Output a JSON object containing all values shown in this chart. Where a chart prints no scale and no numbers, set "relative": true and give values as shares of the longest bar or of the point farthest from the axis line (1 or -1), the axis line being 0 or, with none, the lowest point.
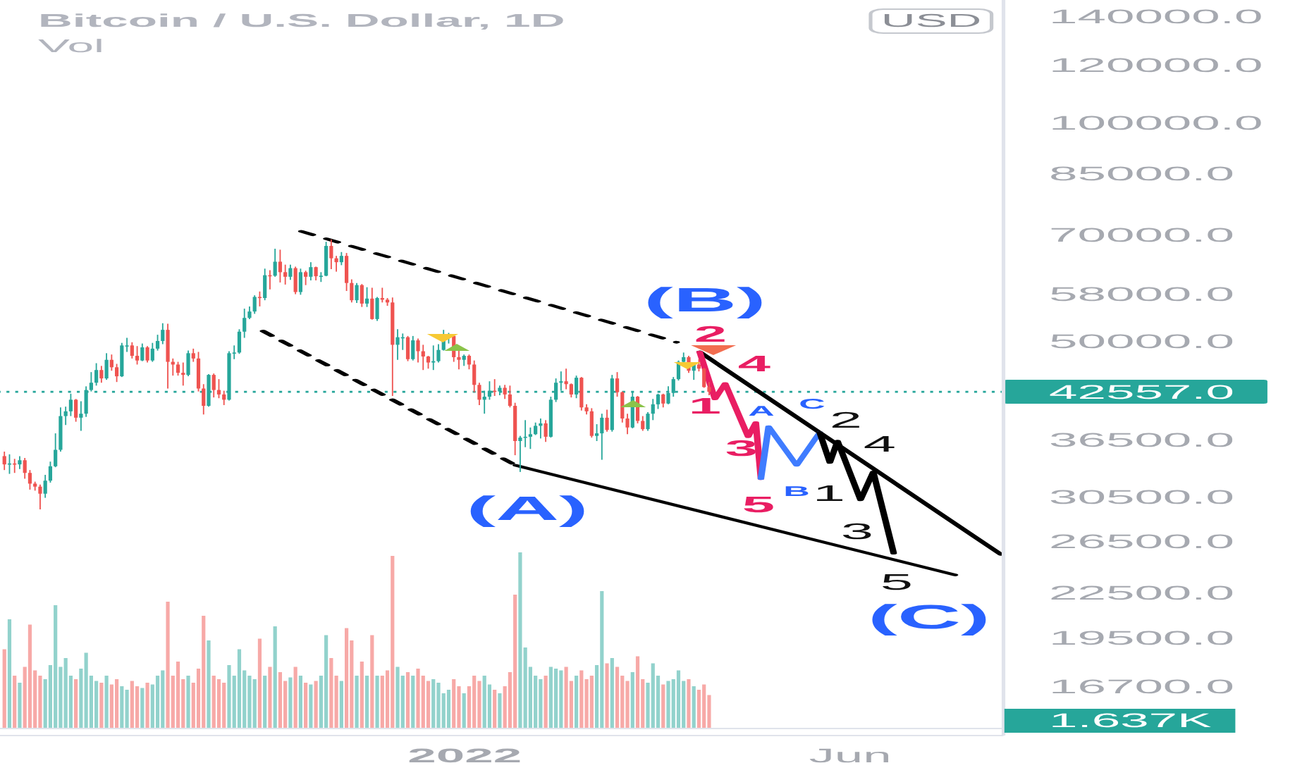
{
  "chart_data": [
    {
      "type": "candlestick",
      "title": "Bitcoin / U.S. Dollar, 1D",
      "x": [
        "2021-07-05",
        "2021-07-07",
        "2021-07-09",
        "2021-07-11",
        "2021-07-13",
        "2021-07-15",
        "2021-07-17",
        "2021-07-19",
        "2021-07-21",
        "2021-07-23",
        "2021-07-25",
        "2021-07-27",
        "2021-07-29",
        "2021-07-31",
        "2021-08-02",
        "2021-08-04",
        "2021-08-06",
        "2021-08-08",
        "2021-08-10",
        "2021-08-12",
        "2021-08-14",
        "2021-08-16",
        "2021-08-18",
        "2021-08-20",
        "2021-08-22",
        "2021-08-24",
        "2021-08-26",
        "2021-08-28",
        "2021-08-30",
        "2021-09-01",
        "2021-09-03",
        "2021-09-05",
        "2021-09-07",
        "2021-09-09",
        "2021-09-11",
        "2021-09-13",
        "2021-09-15",
        "2021-09-17",
        "2021-09-19",
        "2021-09-21",
        "2021-09-23",
        "2021-09-25",
        "2021-09-27",
        "2021-09-29",
        "2021-10-01",
        "2021-10-03",
        "2021-10-05",
        "2021-10-07",
        "2021-10-09",
        "2021-10-11",
        "2021-10-13",
        "2021-10-15",
        "2021-10-17",
        "2021-10-19",
        "2021-10-21",
        "2021-10-23",
        "2021-10-25",
        "2021-10-27",
        "2021-10-29",
        "2021-10-31",
        "2021-11-02",
        "2021-11-04",
        "2021-11-06",
        "2021-11-08",
        "2021-11-10",
        "2021-11-12",
        "2021-11-14",
        "2021-11-16",
        "2021-11-18",
        "2021-11-20",
        "2021-11-22",
        "2021-11-24",
        "2021-11-26",
        "2021-11-28",
        "2021-11-30",
        "2021-12-02",
        "2021-12-04",
        "2021-12-06",
        "2021-12-08",
        "2021-12-10",
        "2021-12-12",
        "2021-12-14",
        "2021-12-16",
        "2021-12-18",
        "2021-12-20",
        "2021-12-22",
        "2021-12-24",
        "2021-12-26",
        "2021-12-28",
        "2021-12-30",
        "2022-01-01",
        "2022-01-03",
        "2022-01-05",
        "2022-01-07",
        "2022-01-09",
        "2022-01-11",
        "2022-01-13",
        "2022-01-15",
        "2022-01-17",
        "2022-01-19",
        "2022-01-21",
        "2022-01-23",
        "2022-01-25",
        "2022-01-27",
        "2022-01-29",
        "2022-01-31",
        "2022-02-02",
        "2022-02-04",
        "2022-02-06",
        "2022-02-08",
        "2022-02-10",
        "2022-02-12",
        "2022-02-14",
        "2022-02-16",
        "2022-02-18",
        "2022-02-20",
        "2022-02-22",
        "2022-02-24",
        "2022-02-26",
        "2022-02-28",
        "2022-03-02",
        "2022-03-04",
        "2022-03-06",
        "2022-03-08",
        "2022-03-10",
        "2022-03-12",
        "2022-03-14",
        "2022-03-16",
        "2022-03-18",
        "2022-03-20",
        "2022-03-22",
        "2022-03-24",
        "2022-03-26",
        "2022-03-28",
        "2022-03-30",
        "2022-04-01",
        "2022-04-03",
        "2022-04-05",
        "2022-04-07"
      ],
      "ohlc": [
        [
          34700,
          35200,
          33200,
          33800
        ],
        [
          33800,
          34900,
          32800,
          33900
        ],
        [
          33900,
          34400,
          32900,
          33800
        ],
        [
          33800,
          34700,
          33300,
          34250
        ],
        [
          34250,
          34500,
          32300,
          32900
        ],
        [
          32900,
          33200,
          31200,
          31800
        ],
        [
          31800,
          32000,
          31100,
          31500
        ],
        [
          31500,
          31700,
          29300,
          30800
        ],
        [
          30800,
          32700,
          30400,
          32100
        ],
        [
          32100,
          34100,
          31900,
          33600
        ],
        [
          33600,
          37300,
          33500,
          35400
        ],
        [
          35400,
          40500,
          35200,
          39400
        ],
        [
          39400,
          40600,
          38300,
          40000
        ],
        [
          40000,
          42300,
          39400,
          41500
        ],
        [
          41500,
          41600,
          38700,
          39200
        ],
        [
          39200,
          41300,
          37600,
          39700
        ],
        [
          39700,
          43300,
          39300,
          42800
        ],
        [
          42800,
          45300,
          42600,
          43800
        ],
        [
          43800,
          46600,
          43400,
          45600
        ],
        [
          45600,
          46200,
          43800,
          44400
        ],
        [
          44400,
          48100,
          44200,
          47100
        ],
        [
          47100,
          47900,
          45500,
          46000
        ],
        [
          46000,
          46500,
          43900,
          44700
        ],
        [
          44700,
          49700,
          44600,
          49300
        ],
        [
          49300,
          50500,
          48300,
          49300
        ],
        [
          49300,
          49800,
          47300,
          47700
        ],
        [
          47700,
          49200,
          46400,
          47000
        ],
        [
          47000,
          49600,
          46900,
          49000
        ],
        [
          49000,
          49200,
          46700,
          47000
        ],
        [
          47000,
          49700,
          46800,
          48800
        ],
        [
          48800,
          51000,
          48500,
          50000
        ],
        [
          50000,
          52900,
          49500,
          51800
        ],
        [
          51800,
          52800,
          43000,
          46800
        ],
        [
          46800,
          47300,
          44800,
          46400
        ],
        [
          46400,
          46800,
          44800,
          45200
        ],
        [
          45200,
          46700,
          43400,
          44900
        ],
        [
          44900,
          48500,
          44700,
          48100
        ],
        [
          48100,
          48800,
          46800,
          47300
        ],
        [
          47300,
          48300,
          42600,
          43000
        ],
        [
          43000,
          43600,
          39600,
          40700
        ],
        [
          40700,
          45000,
          40600,
          44900
        ],
        [
          44900,
          45100,
          41800,
          42800
        ],
        [
          42800,
          44300,
          41700,
          42200
        ],
        [
          42200,
          42700,
          40800,
          41500
        ],
        [
          41500,
          48400,
          41400,
          48100
        ],
        [
          48100,
          49300,
          47200,
          48200
        ],
        [
          48200,
          51900,
          48000,
          51500
        ],
        [
          51500,
          55400,
          50500,
          53800
        ],
        [
          53800,
          55800,
          53600,
          54900
        ],
        [
          54900,
          57800,
          54500,
          57500
        ],
        [
          57500,
          58500,
          55800,
          57300
        ],
        [
          57300,
          62900,
          56900,
          61600
        ],
        [
          61600,
          62600,
          58900,
          61500
        ],
        [
          61500,
          67000,
          61300,
          64300
        ],
        [
          64300,
          66800,
          60200,
          62200
        ],
        [
          62200,
          63700,
          59800,
          61300
        ],
        [
          61300,
          63700,
          60700,
          63000
        ],
        [
          63000,
          63300,
          58000,
          58400
        ],
        [
          58400,
          62900,
          57900,
          62200
        ],
        [
          62200,
          62500,
          59700,
          61300
        ],
        [
          61300,
          64200,
          60600,
          63200
        ],
        [
          63200,
          63300,
          60600,
          61400
        ],
        [
          61400,
          62200,
          60300,
          61500
        ],
        [
          61500,
          68500,
          61400,
          67600
        ],
        [
          67600,
          69000,
          62800,
          65000
        ],
        [
          65000,
          65500,
          62300,
          64200
        ],
        [
          64200,
          66300,
          63600,
          65500
        ],
        [
          65500,
          66100,
          58600,
          60100
        ],
        [
          60100,
          60800,
          56500,
          56900
        ],
        [
          56900,
          60100,
          56400,
          59700
        ],
        [
          59700,
          59900,
          55700,
          56300
        ],
        [
          56300,
          59300,
          55700,
          57200
        ],
        [
          57200,
          59200,
          53500,
          53600
        ],
        [
          53600,
          57500,
          53300,
          57300
        ],
        [
          57300,
          59200,
          56500,
          57000
        ],
        [
          57000,
          57300,
          55900,
          56500
        ],
        [
          56500,
          57400,
          42000,
          49400
        ],
        [
          49400,
          51900,
          47100,
          50600
        ],
        [
          50600,
          51200,
          48600,
          50600
        ],
        [
          50600,
          50800,
          46900,
          47200
        ],
        [
          47200,
          50800,
          47000,
          50100
        ],
        [
          50100,
          50400,
          46700,
          48400
        ],
        [
          48400,
          49400,
          45600,
          47600
        ],
        [
          47600,
          47700,
          45800,
          46700
        ],
        [
          46700,
          49300,
          45600,
          46900
        ],
        [
          46900,
          49500,
          46700,
          48600
        ],
        [
          48600,
          51800,
          48500,
          50800
        ],
        [
          50800,
          51300,
          49600,
          50800
        ],
        [
          50800,
          51000,
          46800,
          47500
        ],
        [
          47500,
          48500,
          45700,
          47100
        ],
        [
          47100,
          47900,
          46200,
          47700
        ],
        [
          47700,
          47900,
          45700,
          46400
        ],
        [
          46400,
          47000,
          42500,
          43500
        ],
        [
          43500,
          43800,
          40800,
          41500
        ],
        [
          41500,
          42700,
          39700,
          41900
        ],
        [
          41900,
          44000,
          41500,
          42700
        ],
        [
          42700,
          44300,
          42000,
          42600
        ],
        [
          42600,
          43400,
          42100,
          43100
        ],
        [
          43100,
          43500,
          41600,
          42200
        ],
        [
          42200,
          43400,
          40500,
          40700
        ],
        [
          40700,
          41100,
          34800,
          36400
        ],
        [
          36400,
          37000,
          33000,
          36800
        ],
        [
          36800,
          38900,
          35700,
          36900
        ],
        [
          36900,
          38000,
          35500,
          37200
        ],
        [
          37200,
          38600,
          37100,
          38200
        ],
        [
          38200,
          39100,
          36700,
          38500
        ],
        [
          38500,
          38900,
          36300,
          36900
        ],
        [
          36900,
          41900,
          36800,
          41500
        ],
        [
          41500,
          44400,
          41200,
          43800
        ],
        [
          43800,
          45400,
          42700,
          44000
        ],
        [
          44000,
          45800,
          42900,
          43600
        ],
        [
          43600,
          43700,
          41800,
          42200
        ],
        [
          42200,
          44800,
          41700,
          44500
        ],
        [
          44500,
          44600,
          40100,
          40500
        ],
        [
          40500,
          40900,
          39600,
          40000
        ],
        [
          40000,
          40400,
          36800,
          37000
        ],
        [
          37000,
          38400,
          36400,
          37300
        ],
        [
          37300,
          39700,
          34300,
          39200
        ],
        [
          39200,
          40200,
          37500,
          37700
        ],
        [
          37700,
          44900,
          37500,
          44400
        ],
        [
          44400,
          45300,
          41900,
          42500
        ],
        [
          42500,
          42600,
          38600,
          39100
        ],
        [
          39100,
          39700,
          37200,
          38000
        ],
        [
          38000,
          42500,
          37900,
          41900
        ],
        [
          41900,
          42000,
          38500,
          38800
        ],
        [
          38800,
          39400,
          37600,
          37800
        ],
        [
          37800,
          39900,
          37600,
          39700
        ],
        [
          39700,
          41600,
          38900,
          40900
        ],
        [
          40900,
          42300,
          40300,
          42200
        ],
        [
          42200,
          42300,
          40500,
          41000
        ],
        [
          41000,
          43300,
          40900,
          42400
        ],
        [
          42400,
          44600,
          41900,
          44300
        ],
        [
          44300,
          47000,
          44100,
          46800
        ],
        [
          46800,
          48200,
          46600,
          47500
        ],
        [
          47500,
          47700,
          45200,
          45500
        ],
        [
          45500,
          46700,
          44200,
          46400
        ],
        [
          46400,
          47200,
          45400,
          45800
        ],
        [
          45800,
          45900,
          43100,
          43200
        ],
        [
          43200,
          43900,
          42100,
          42557
        ]
      ],
      "colors": [
        "#ef5350",
        "#26a69a",
        "#ef5350",
        "#26a69a",
        "#ef5350",
        "#ef5350",
        "#ef5350",
        "#ef5350",
        "#26a69a",
        "#26a69a",
        "#26a69a",
        "#26a69a",
        "#26a69a",
        "#26a69a",
        "#ef5350",
        "#26a69a",
        "#26a69a",
        "#26a69a",
        "#26a69a",
        "#ef5350",
        "#26a69a",
        "#ef5350",
        "#ef5350",
        "#26a69a",
        "#26a69a",
        "#ef5350",
        "#ef5350",
        "#26a69a",
        "#ef5350",
        "#26a69a",
        "#26a69a",
        "#26a69a",
        "#ef5350",
        "#ef5350",
        "#ef5350",
        "#ef5350",
        "#26a69a",
        "#ef5350",
        "#ef5350",
        "#ef5350",
        "#26a69a",
        "#ef5350",
        "#ef5350",
        "#ef5350",
        "#26a69a",
        "#26a69a",
        "#26a69a",
        "#26a69a",
        "#26a69a",
        "#26a69a",
        "#ef5350",
        "#26a69a",
        "#ef5350",
        "#26a69a",
        "#ef5350",
        "#ef5350",
        "#26a69a",
        "#ef5350",
        "#26a69a",
        "#ef5350",
        "#26a69a",
        "#ef5350",
        "#26a69a",
        "#26a69a",
        "#ef5350",
        "#ef5350",
        "#26a69a",
        "#ef5350",
        "#ef5350",
        "#26a69a",
        "#ef5350",
        "#26a69a",
        "#ef5350",
        "#26a69a",
        "#ef5350",
        "#ef5350",
        "#ef5350",
        "#26a69a",
        "#26a69a",
        "#ef5350",
        "#26a69a",
        "#ef5350",
        "#ef5350",
        "#ef5350",
        "#26a69a",
        "#26a69a",
        "#26a69a",
        "#26a69a",
        "#ef5350",
        "#ef5350",
        "#26a69a",
        "#ef5350",
        "#ef5350",
        "#ef5350",
        "#26a69a",
        "#26a69a",
        "#ef5350",
        "#26a69a",
        "#ef5350",
        "#ef5350",
        "#ef5350",
        "#26a69a",
        "#26a69a",
        "#26a69a",
        "#26a69a",
        "#26a69a",
        "#ef5350",
        "#26a69a",
        "#26a69a",
        "#26a69a",
        "#ef5350",
        "#ef5350",
        "#26a69a",
        "#ef5350",
        "#ef5350",
        "#ef5350",
        "#26a69a",
        "#26a69a",
        "#ef5350",
        "#26a69a",
        "#ef5350",
        "#ef5350",
        "#ef5350",
        "#26a69a",
        "#ef5350",
        "#ef5350",
        "#26a69a",
        "#26a69a",
        "#26a69a",
        "#ef5350",
        "#26a69a",
        "#26a69a",
        "#26a69a",
        "#26a69a",
        "#ef5350",
        "#26a69a",
        "#ef5350",
        "#ef5350",
        "#ef5350"
      ],
      "xlim": [
        "2021-07-03",
        "2022-07-31"
      ],
      "xticks": [
        {
          "value": "2022-01-01",
          "label": "2022"
        },
        {
          "value": "2022-06-01",
          "label": "Jun"
        }
      ],
      "ylim": [
        14300,
        147500
      ],
      "log": true,
      "yticks": [
        {
          "value": 140000,
          "label": "140000.0"
        },
        {
          "value": 120000,
          "label": "120000.0"
        },
        {
          "value": 100000,
          "label": "100000.0"
        },
        {
          "value": 85000,
          "label": "85000.0"
        },
        {
          "value": 70000,
          "label": "70000.0"
        },
        {
          "value": 58000,
          "label": "58000.0"
        },
        {
          "value": 50000,
          "label": "50000.0"
        },
        {
          "value": 36500,
          "label": "36500.0"
        },
        {
          "value": 30500,
          "label": "30500.0"
        },
        {
          "value": 26500,
          "label": "26500.0"
        },
        {
          "value": 22500,
          "label": "22500.0"
        },
        {
          "value": 19500,
          "label": "19500.0"
        },
        {
          "value": 16700,
          "label": "16700.0"
        }
      ],
      "ref_lines": [
        {
          "axis": "y",
          "value": 42557,
          "label": "42557.0",
          "color": "#26a69a",
          "line_style": "dotted"
        }
      ],
      "series": [
        {
          "type": "line",
          "x": [
            "2021-10-29",
            "2022-03-25"
          ],
          "values": [
            70800,
            49800
          ],
          "color": "#000000",
          "line_style": "dashed"
        },
        {
          "type": "line",
          "x": [
            "2021-10-14",
            "2022-01-21"
          ],
          "values": [
            51600,
            33700
          ],
          "color": "#000000",
          "line_style": "dashed"
        },
        {
          "type": "line",
          "x": [
            "2022-01-21",
            "2022-07-12"
          ],
          "values": [
            33700,
            23800
          ],
          "color": "#000000",
          "line_style": "solid"
        },
        {
          "type": "line",
          "x": [
            "2022-04-03",
            "2022-07-30"
          ],
          "values": [
            48300,
            25400
          ],
          "color": "#000000",
          "line_style": "solid"
        },
        {
          "type": "line",
          "x": [
            "2022-04-03",
            "2022-04-09",
            "2022-04-13",
            "2022-04-22",
            "2022-04-25",
            "2022-04-27"
          ],
          "values": [
            48300,
            41600,
            43700,
            36900,
            38600,
            32300
          ],
          "color": "#e91e63",
          "line_style": "solid"
        },
        {
          "type": "line",
          "x": [
            "2022-04-27",
            "2022-04-30",
            "2022-05-11",
            "2022-05-20"
          ],
          "values": [
            32300,
            38100,
            33700,
            37400
          ],
          "color": "#3f7cff",
          "line_style": "solid"
        },
        {
          "type": "line",
          "x": [
            "2022-05-20",
            "2022-05-24",
            "2022-05-27",
            "2022-06-05",
            "2022-06-10",
            "2022-06-18"
          ],
          "values": [
            37400,
            34000,
            36400,
            30200,
            33000,
            25500
          ],
          "color": "#000000",
          "line_style": "solid"
        }
      ],
      "annotations": [
        "USD",
        "(A)",
        "(B)",
        "(C)",
        "1",
        "2",
        "3",
        "4",
        "5",
        "A",
        "B",
        "C",
        "1",
        "2",
        "3",
        "4",
        "5"
      ]
    },
    {
      "type": "bar",
      "title": "Vol",
      "relative": true,
      "tick_labels": false,
      "categories": [
        null,
        null,
        null,
        null,
        null,
        null,
        null,
        null,
        null,
        null,
        null,
        null,
        null,
        null,
        null,
        null,
        null,
        null,
        null,
        null,
        null,
        null,
        null,
        null,
        null,
        null,
        null,
        null,
        null,
        null,
        null,
        null,
        null,
        null,
        null,
        null,
        null,
        null,
        null,
        null,
        null,
        null,
        null,
        null,
        null,
        null,
        null,
        null,
        null,
        null,
        null,
        null,
        null,
        null,
        null,
        null,
        null,
        null,
        null,
        null,
        null,
        null,
        null,
        null,
        null,
        null,
        null,
        null,
        null,
        null,
        null,
        null,
        null,
        null,
        null,
        null,
        null,
        null,
        null,
        null,
        null,
        null,
        null,
        null,
        null,
        null,
        null,
        null,
        null,
        null,
        null,
        null,
        null,
        null,
        null,
        null,
        null,
        null,
        null,
        null,
        null,
        null,
        null,
        null,
        null,
        null,
        null,
        null,
        null,
        null,
        null,
        null,
        null,
        null,
        null,
        null,
        null,
        null,
        null,
        null,
        null,
        null,
        null,
        null,
        null,
        null,
        null,
        null,
        null,
        null,
        null,
        null,
        null,
        null,
        null,
        null,
        null,
        null,
        null
      ],
      "values": [
        0.45,
        0.62,
        0.3,
        0.26,
        0.35,
        0.59,
        0.33,
        0.3,
        0.28,
        0.36,
        0.7,
        0.35,
        0.4,
        0.3,
        0.28,
        0.34,
        0.43,
        0.3,
        0.27,
        0.26,
        0.3,
        0.25,
        0.28,
        0.24,
        0.22,
        0.27,
        0.24,
        0.23,
        0.26,
        0.25,
        0.3,
        0.33,
        0.72,
        0.3,
        0.38,
        0.28,
        0.3,
        0.26,
        0.34,
        0.64,
        0.5,
        0.3,
        0.28,
        0.26,
        0.36,
        0.3,
        0.45,
        0.33,
        0.3,
        0.28,
        0.51,
        0.3,
        0.35,
        0.58,
        0.32,
        0.27,
        0.29,
        0.35,
        0.3,
        0.26,
        0.25,
        0.27,
        0.3,
        0.53,
        0.4,
        0.3,
        0.27,
        0.57,
        0.5,
        0.3,
        0.38,
        0.3,
        0.53,
        0.3,
        0.3,
        0.33,
        0.98,
        0.35,
        0.3,
        0.32,
        0.3,
        0.34,
        0.3,
        0.27,
        0.28,
        0.26,
        0.2,
        0.22,
        0.28,
        0.24,
        0.2,
        0.24,
        0.3,
        0.27,
        0.3,
        0.25,
        0.22,
        0.2,
        0.24,
        0.32,
        0.76,
        1,
        0.46,
        0.35,
        0.3,
        0.28,
        0.3,
        0.35,
        0.34,
        0.33,
        0.35,
        0.27,
        0.3,
        0.33,
        0.28,
        0.3,
        0.36,
        0.78,
        0.37,
        0.4,
        0.35,
        0.3,
        0.27,
        0.32,
        0.41,
        0.28,
        0.26,
        0.37,
        0.3,
        0.25,
        0.27,
        0.28,
        0.33,
        0.27,
        0.28,
        0.24,
        0.22,
        0.25,
        0.19
      ],
      "colors": [
        "#f7a9a7",
        "#92d2cc",
        "#f7a9a7",
        "#92d2cc",
        "#f7a9a7",
        "#f7a9a7",
        "#f7a9a7",
        "#f7a9a7",
        "#92d2cc",
        "#92d2cc",
        "#92d2cc",
        "#92d2cc",
        "#92d2cc",
        "#92d2cc",
        "#f7a9a7",
        "#92d2cc",
        "#92d2cc",
        "#92d2cc",
        "#92d2cc",
        "#f7a9a7",
        "#92d2cc",
        "#f7a9a7",
        "#f7a9a7",
        "#92d2cc",
        "#92d2cc",
        "#f7a9a7",
        "#f7a9a7",
        "#92d2cc",
        "#f7a9a7",
        "#92d2cc",
        "#92d2cc",
        "#92d2cc",
        "#f7a9a7",
        "#f7a9a7",
        "#f7a9a7",
        "#f7a9a7",
        "#92d2cc",
        "#f7a9a7",
        "#f7a9a7",
        "#f7a9a7",
        "#92d2cc",
        "#f7a9a7",
        "#f7a9a7",
        "#f7a9a7",
        "#92d2cc",
        "#92d2cc",
        "#92d2cc",
        "#92d2cc",
        "#92d2cc",
        "#92d2cc",
        "#f7a9a7",
        "#92d2cc",
        "#f7a9a7",
        "#92d2cc",
        "#f7a9a7",
        "#f7a9a7",
        "#92d2cc",
        "#f7a9a7",
        "#92d2cc",
        "#f7a9a7",
        "#92d2cc",
        "#f7a9a7",
        "#92d2cc",
        "#92d2cc",
        "#f7a9a7",
        "#f7a9a7",
        "#92d2cc",
        "#f7a9a7",
        "#f7a9a7",
        "#92d2cc",
        "#f7a9a7",
        "#92d2cc",
        "#f7a9a7",
        "#92d2cc",
        "#f7a9a7",
        "#f7a9a7",
        "#f7a9a7",
        "#92d2cc",
        "#92d2cc",
        "#f7a9a7",
        "#92d2cc",
        "#f7a9a7",
        "#f7a9a7",
        "#f7a9a7",
        "#92d2cc",
        "#92d2cc",
        "#92d2cc",
        "#92d2cc",
        "#f7a9a7",
        "#f7a9a7",
        "#92d2cc",
        "#f7a9a7",
        "#f7a9a7",
        "#f7a9a7",
        "#92d2cc",
        "#92d2cc",
        "#f7a9a7",
        "#92d2cc",
        "#f7a9a7",
        "#f7a9a7",
        "#f7a9a7",
        "#92d2cc",
        "#92d2cc",
        "#92d2cc",
        "#92d2cc",
        "#92d2cc",
        "#f7a9a7",
        "#92d2cc",
        "#92d2cc",
        "#92d2cc",
        "#f7a9a7",
        "#f7a9a7",
        "#92d2cc",
        "#f7a9a7",
        "#f7a9a7",
        "#f7a9a7",
        "#92d2cc",
        "#92d2cc",
        "#f7a9a7",
        "#92d2cc",
        "#f7a9a7",
        "#f7a9a7",
        "#f7a9a7",
        "#92d2cc",
        "#f7a9a7",
        "#f7a9a7",
        "#92d2cc",
        "#92d2cc",
        "#92d2cc",
        "#f7a9a7",
        "#92d2cc",
        "#92d2cc",
        "#92d2cc",
        "#92d2cc",
        "#f7a9a7",
        "#92d2cc",
        "#f7a9a7",
        "#f7a9a7",
        "#f7a9a7"
      ],
      "annotations": [
        "1.637K"
      ]
    }
  ]
}
